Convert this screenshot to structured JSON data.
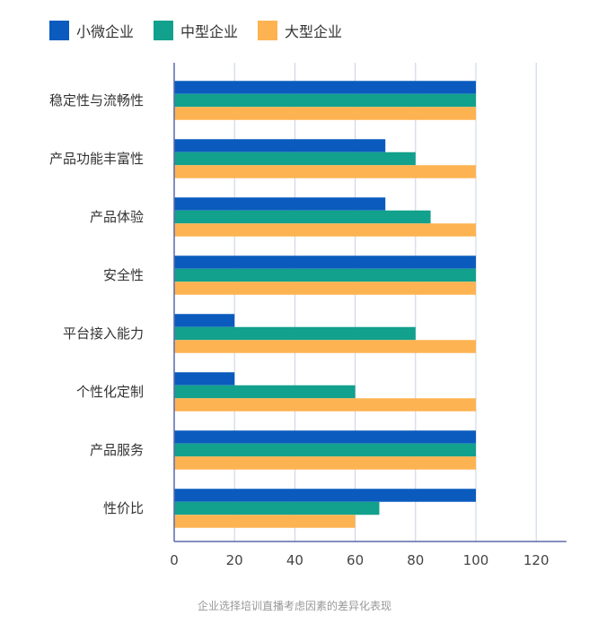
{
  "chart_data": {
    "type": "bar",
    "orientation": "horizontal",
    "title": "企业选择培训直播考虑因素的差异化表现",
    "categories": [
      "稳定性与流畅性",
      "产品功能丰富性",
      "产品体验",
      "安全性",
      "平台接入能力",
      "个性化定制",
      "产品服务",
      "性价比"
    ],
    "series": [
      {
        "name": "小微企业",
        "color": "#0a5bbd",
        "values": [
          100,
          70,
          70,
          100,
          20,
          20,
          100,
          100
        ]
      },
      {
        "name": "中型企业",
        "color": "#12a18c",
        "values": [
          100,
          80,
          85,
          100,
          80,
          60,
          100,
          68
        ]
      },
      {
        "name": "大型企业",
        "color": "#fdb351",
        "values": [
          100,
          100,
          100,
          100,
          100,
          100,
          100,
          60
        ]
      }
    ],
    "xlim": [
      0,
      130
    ],
    "xticks": [
      "0",
      "20",
      "40",
      "60",
      "80",
      "100",
      "120"
    ],
    "grid": true,
    "legend": "top-left"
  }
}
